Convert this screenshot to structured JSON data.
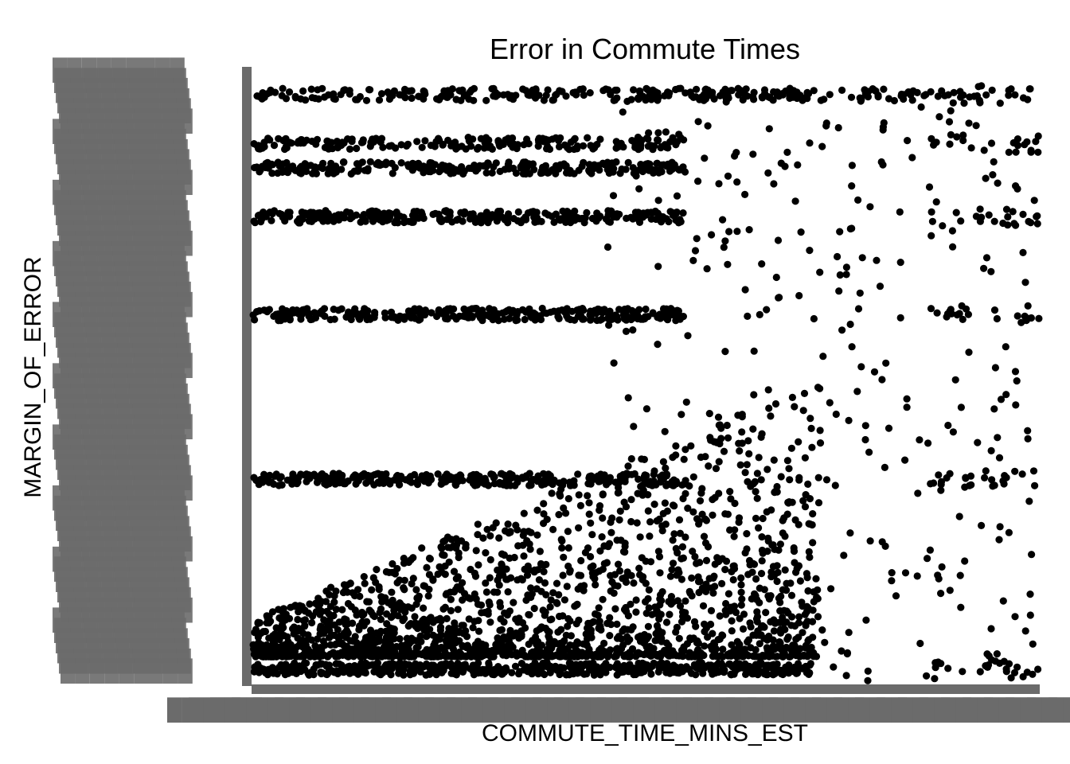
{
  "chart_data": {
    "type": "scatter",
    "title": "Error in Commute Times",
    "xlabel": "COMMUTE_TIME_MINS_EST",
    "ylabel": "MARGIN_OF_ERROR",
    "point_color": "#000000",
    "axis_color": "#6b6b6b",
    "grid": false,
    "legend": "none",
    "y_bands": [
      {
        "level": 0.96,
        "x_from": 0.0,
        "x_to": 0.86,
        "count": 260
      },
      {
        "level": 0.88,
        "x_from": 0.0,
        "x_to": 0.55,
        "count": 200
      },
      {
        "level": 0.84,
        "x_from": 0.0,
        "x_to": 0.55,
        "count": 260
      },
      {
        "level": 0.76,
        "x_from": 0.0,
        "x_to": 0.55,
        "count": 280
      },
      {
        "level": 0.6,
        "x_from": 0.0,
        "x_to": 0.55,
        "count": 300
      },
      {
        "level": 0.33,
        "x_from": 0.0,
        "x_to": 0.55,
        "count": 300
      },
      {
        "level": 0.02,
        "x_from": 0.0,
        "x_to": 0.71,
        "count": 520
      }
    ]
  }
}
